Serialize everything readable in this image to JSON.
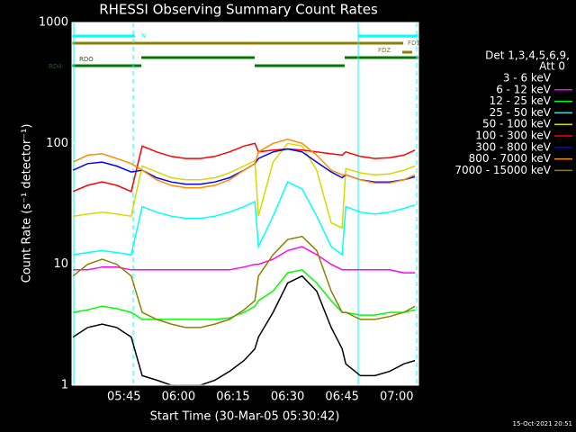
{
  "chart_data": {
    "type": "line",
    "title": "RHESSI Observing Summary Count Rates",
    "x_label": "Start Time (30-Mar-05 05:30:42)",
    "y_label": "Count Rate (s⁻¹ detector⁻¹)",
    "legend_header": [
      "Det 1,3,4,5,6,9,",
      "Att 0"
    ],
    "footer": "15-Oct-2021 20:51",
    "annotations": [
      "N",
      "FD1",
      "FDZ",
      "RDO",
      "RD4"
    ],
    "log_y": true,
    "xlim": [
      "05:30:42",
      "07:06"
    ],
    "xticks": [
      "05:45",
      "06:00",
      "06:15",
      "06:30",
      "06:45",
      "07:00"
    ],
    "ylim": [
      1,
      1000
    ],
    "yticks": [
      1,
      10,
      100,
      1000
    ],
    "x": [
      "05:31",
      "05:35",
      "05:39",
      "05:43",
      "05:47",
      "05:50",
      "05:54",
      "05:58",
      "06:02",
      "06:06",
      "06:10",
      "06:14",
      "06:18",
      "06:21",
      "06:22",
      "06:26",
      "06:30",
      "06:34",
      "06:38",
      "06:42",
      "06:45",
      "06:46",
      "06:50",
      "06:54",
      "06:58",
      "07:02",
      "07:05"
    ],
    "series": [
      {
        "name": "3 - 6 keV",
        "color": "#000000",
        "values": [
          2.5,
          3,
          3.2,
          3,
          2.5,
          1.2,
          1.1,
          1,
          1,
          1,
          1.1,
          1.3,
          1.6,
          2,
          2.5,
          4,
          7,
          8,
          6,
          3,
          2,
          1.5,
          1.2,
          1.2,
          1.3,
          1.5,
          1.6
        ]
      },
      {
        "name": "6 - 12 keV",
        "color": "#ff00ff",
        "values": [
          9,
          9,
          9.5,
          9.5,
          9,
          9,
          9,
          9,
          9,
          9,
          9,
          9,
          9.5,
          10,
          10,
          11,
          13,
          14,
          12,
          10,
          9,
          9,
          9,
          9,
          9,
          8.5,
          8.5
        ]
      },
      {
        "name": "12 - 25 keV",
        "color": "#00ff00",
        "values": [
          4,
          4.2,
          4.5,
          4.3,
          4,
          3.5,
          3.5,
          3.5,
          3.5,
          3.5,
          3.5,
          3.6,
          4,
          4.5,
          5,
          6,
          8.5,
          9,
          7,
          5,
          4,
          4,
          3.8,
          3.8,
          4,
          4,
          4.2
        ]
      },
      {
        "name": "25 - 50 keV",
        "color": "#00ffff",
        "values": [
          12,
          12.5,
          13,
          12.5,
          12,
          30,
          27,
          25,
          24,
          24,
          25,
          27,
          30,
          33,
          14,
          25,
          48,
          42,
          25,
          14,
          12,
          30,
          27,
          26,
          27,
          29,
          31
        ]
      },
      {
        "name": "50 - 100 keV",
        "color": "#d8d800",
        "values": [
          25,
          26,
          27,
          26,
          25,
          65,
          58,
          52,
          50,
          50,
          52,
          57,
          65,
          72,
          25,
          70,
          100,
          95,
          60,
          22,
          20,
          62,
          57,
          55,
          56,
          60,
          65
        ]
      },
      {
        "name": "100 - 300 keV",
        "color": "#ff0000",
        "values": [
          40,
          45,
          48,
          45,
          40,
          95,
          85,
          78,
          75,
          75,
          78,
          85,
          95,
          100,
          85,
          88,
          90,
          88,
          85,
          82,
          80,
          85,
          78,
          75,
          76,
          80,
          88
        ]
      },
      {
        "name": "300 - 800 keV",
        "color": "#0000ff",
        "values": [
          60,
          68,
          70,
          65,
          58,
          60,
          52,
          48,
          46,
          46,
          48,
          52,
          60,
          68,
          75,
          85,
          90,
          85,
          70,
          58,
          52,
          55,
          50,
          48,
          48,
          50,
          53
        ]
      },
      {
        "name": "800 - 7000 keV",
        "color": "#ff8c00",
        "values": [
          70,
          80,
          82,
          75,
          68,
          60,
          50,
          45,
          43,
          43,
          45,
          50,
          60,
          68,
          85,
          100,
          108,
          100,
          80,
          60,
          55,
          55,
          50,
          47,
          47,
          50,
          55
        ]
      },
      {
        "name": "7000 - 15000 keV",
        "color": "#8b8000",
        "values": [
          8,
          10,
          11,
          10,
          8,
          4,
          3.5,
          3.2,
          3,
          3,
          3.2,
          3.5,
          4.2,
          5,
          8,
          12,
          16,
          17,
          13,
          6,
          4,
          4,
          3.5,
          3.5,
          3.7,
          4,
          4.5
        ]
      }
    ]
  }
}
